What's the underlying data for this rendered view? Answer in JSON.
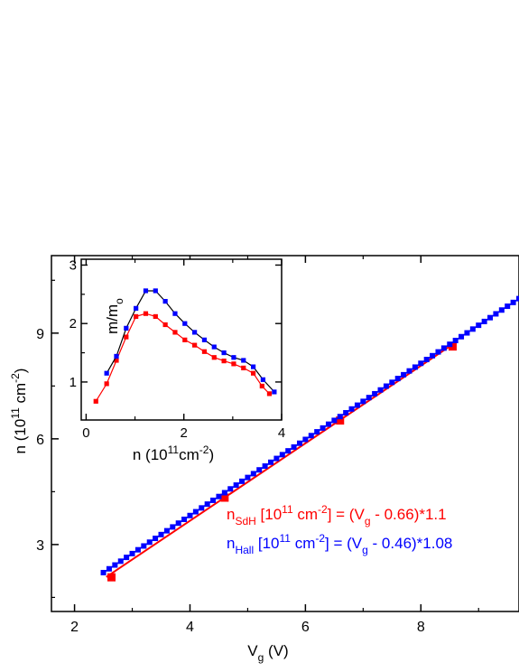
{
  "chart_data": [
    {
      "type": "scatter",
      "xlabel_main": "V",
      "xlabel_sub": "g",
      "xlabel_unit": " (V)",
      "ylabel_main": "n (10",
      "ylabel_sup": "11",
      "ylabel_mid": " cm",
      "ylabel_sup2": "-2",
      "ylabel_end": ")",
      "xlim": [
        1.6,
        9.7
      ],
      "ylim": [
        1.1,
        11.2
      ],
      "xticks": [
        2,
        4,
        6,
        8
      ],
      "yticks": [
        3,
        6,
        9
      ],
      "grid": false,
      "series": [
        {
          "label_main": "n",
          "label_sub": "SdH",
          "label_rest1": " [10",
          "label_sup": "11",
          "label_rest2": " cm",
          "label_sup2": "-2",
          "label_rest3": "] = (V",
          "label_sub2": "g",
          "label_rest4": " - 0.66)*1.1",
          "color": "#ff0000",
          "marker": "square-large",
          "points": [
            [
              2.64,
              2.07
            ],
            [
              4.6,
              4.33
            ],
            [
              6.6,
              6.52
            ],
            [
              8.55,
              8.62
            ]
          ],
          "fit": {
            "x": [
              2.55,
              8.6
            ],
            "slope": 1.1,
            "offset": 0.66
          }
        },
        {
          "label_main": "n",
          "label_sub": "Hall",
          "label_rest1": " [10",
          "label_sup": "11",
          "label_rest2": " cm",
          "label_sup2": "-2",
          "label_rest3": "] = (V",
          "label_sub2": "g",
          "label_rest4": " - 0.46)*1.08",
          "color": "#0000ff",
          "marker": "square-small",
          "x_start": 2.5,
          "x_end": 9.7,
          "x_step": 0.1,
          "slope": 1.08,
          "offset": 0.46
        }
      ]
    },
    {
      "type": "line",
      "inset": true,
      "xlabel_main": "n (10",
      "xlabel_sup": "11",
      "xlabel_mid": "cm",
      "xlabel_sup2": "-2",
      "xlabel_end": ")",
      "ylabel_main": "m/m",
      "ylabel_sub": "o",
      "xlim": [
        -0.1,
        4.0
      ],
      "ylim": [
        0.35,
        3.1
      ],
      "xticks": [
        0,
        2,
        4
      ],
      "yticks": [
        1,
        2,
        3
      ],
      "series": [
        {
          "color": "#ff0000",
          "points": [
            [
              0.2,
              0.67
            ],
            [
              0.42,
              0.97
            ],
            [
              0.62,
              1.37
            ],
            [
              0.82,
              1.77
            ],
            [
              1.02,
              2.12
            ],
            [
              1.22,
              2.17
            ],
            [
              1.42,
              2.12
            ],
            [
              1.62,
              1.98
            ],
            [
              1.82,
              1.85
            ],
            [
              2.02,
              1.72
            ],
            [
              2.22,
              1.63
            ],
            [
              2.42,
              1.52
            ],
            [
              2.62,
              1.42
            ],
            [
              2.82,
              1.36
            ],
            [
              3.02,
              1.31
            ],
            [
              3.22,
              1.24
            ],
            [
              3.42,
              1.15
            ],
            [
              3.6,
              0.93
            ],
            [
              3.75,
              0.8
            ]
          ]
        },
        {
          "color": "#0000ff",
          "points": [
            [
              0.42,
              1.15
            ],
            [
              0.62,
              1.44
            ],
            [
              0.82,
              1.92
            ],
            [
              1.02,
              2.26
            ],
            [
              1.22,
              2.56
            ],
            [
              1.42,
              2.56
            ],
            [
              1.62,
              2.38
            ],
            [
              1.82,
              2.17
            ],
            [
              2.02,
              2.0
            ],
            [
              2.22,
              1.85
            ],
            [
              2.42,
              1.72
            ],
            [
              2.62,
              1.6
            ],
            [
              2.82,
              1.5
            ],
            [
              3.02,
              1.42
            ],
            [
              3.22,
              1.37
            ],
            [
              3.42,
              1.26
            ],
            [
              3.62,
              1.04
            ],
            [
              3.85,
              0.83
            ]
          ]
        }
      ]
    }
  ]
}
